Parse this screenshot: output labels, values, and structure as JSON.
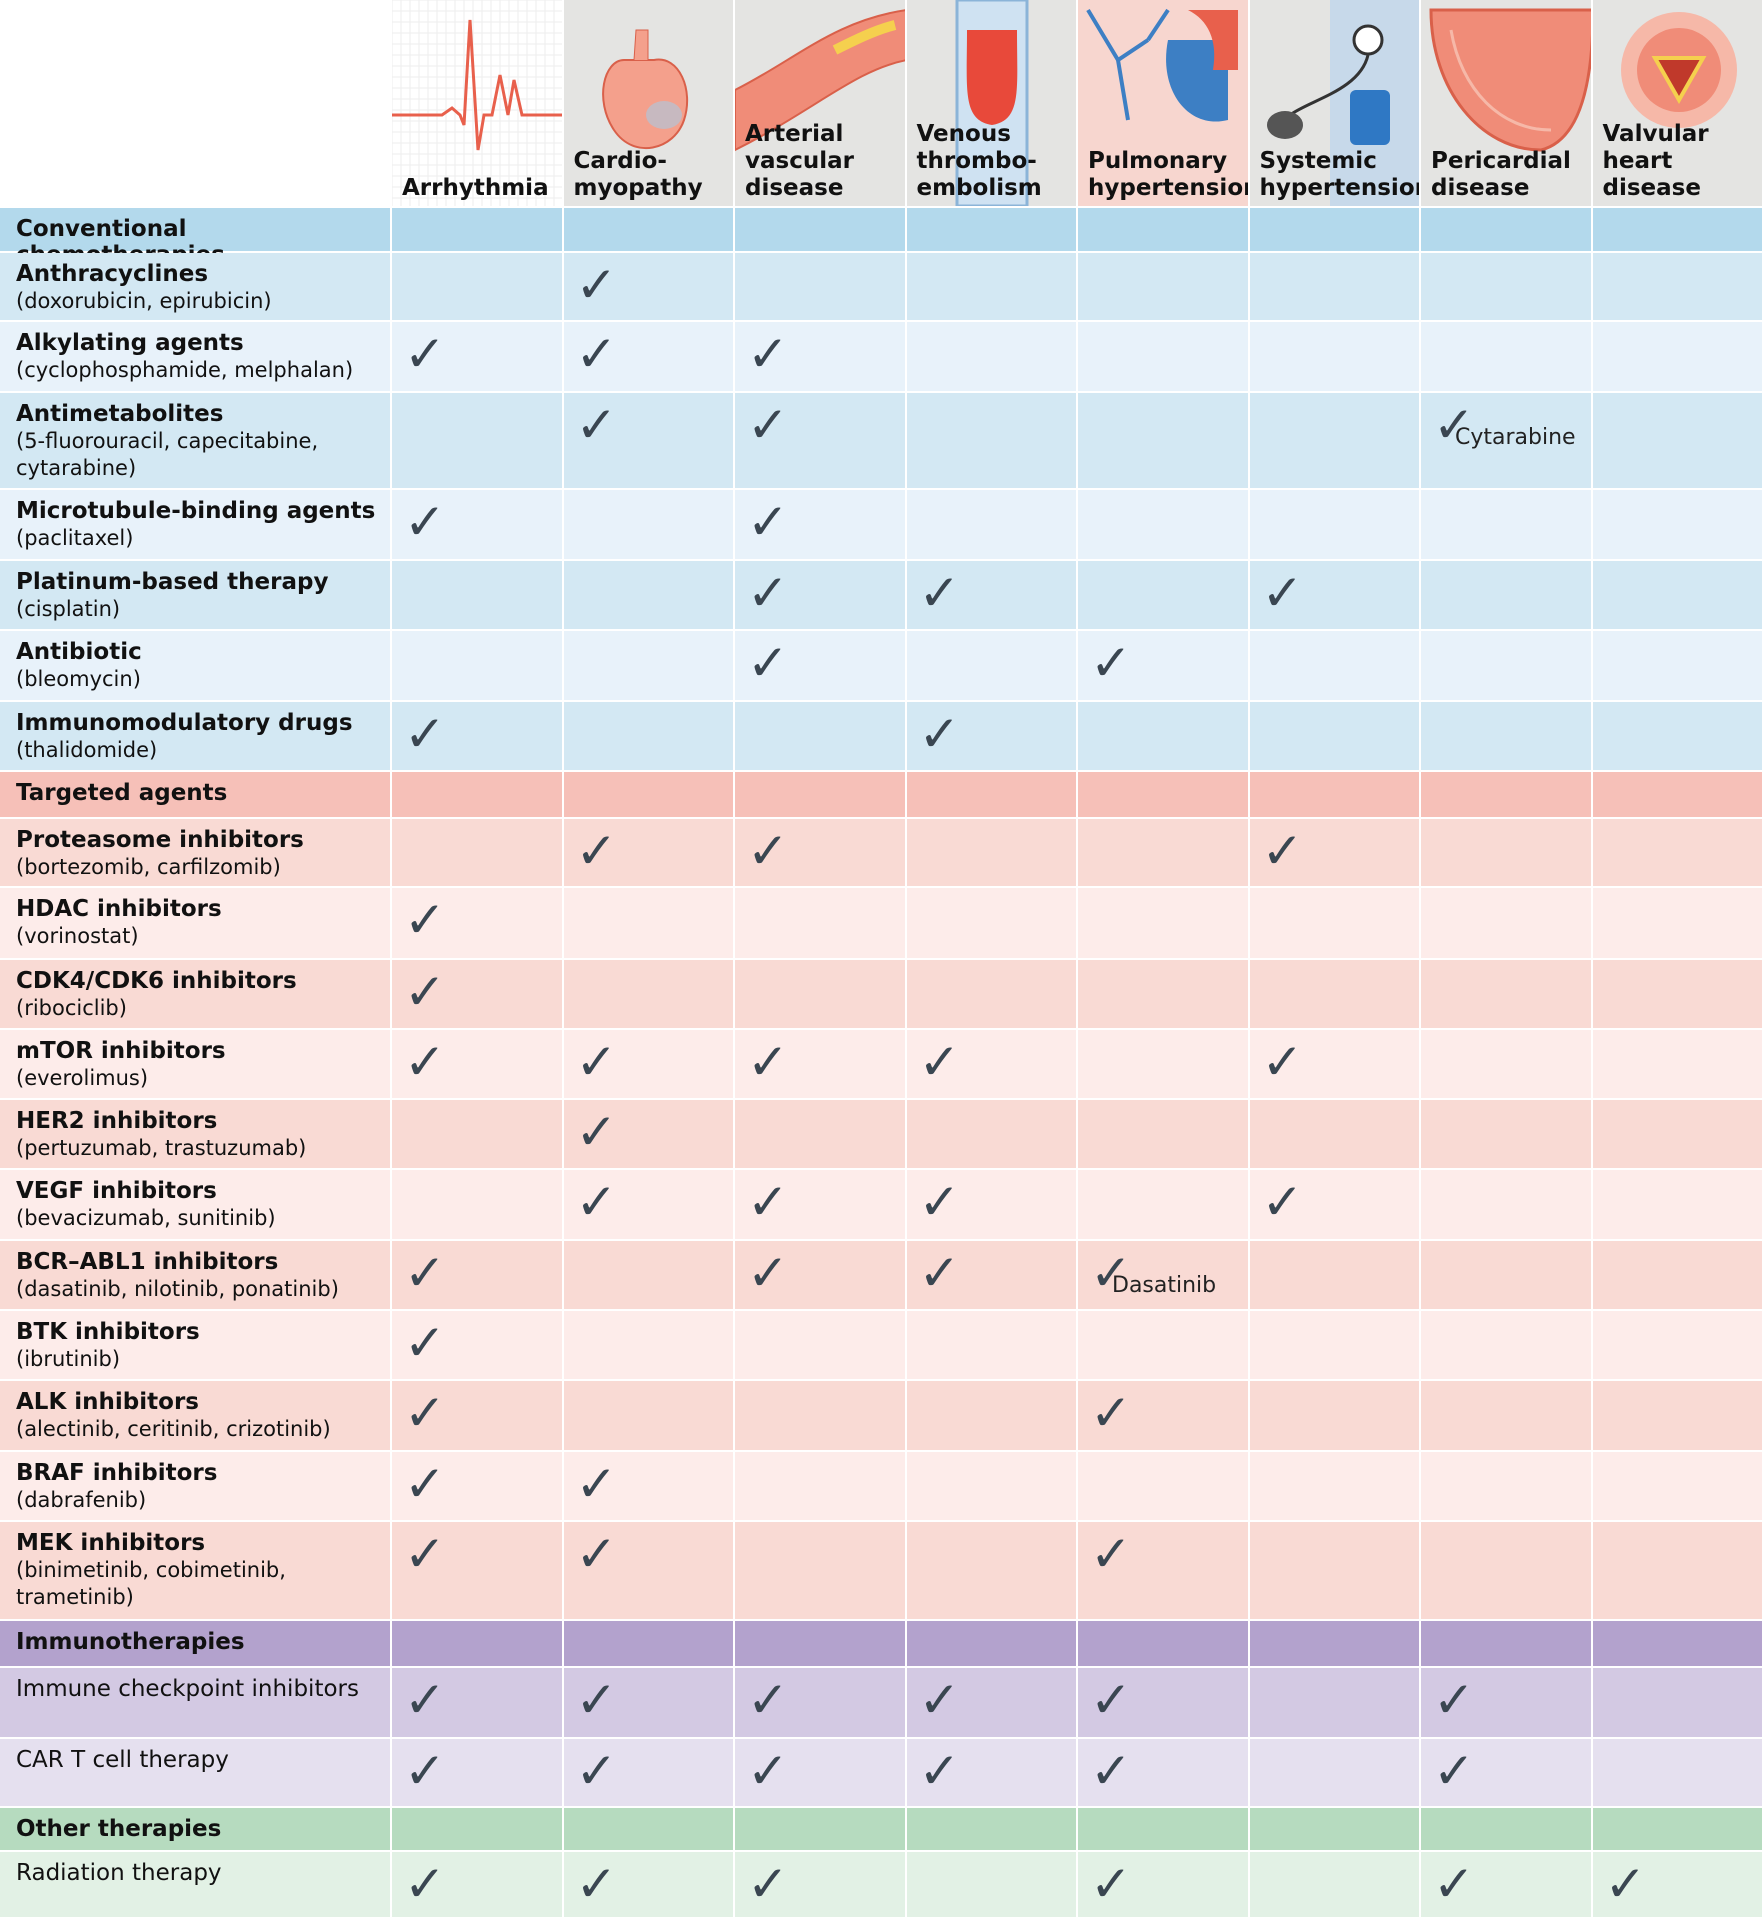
{
  "header": {
    "columns": [
      "Arrhythmia",
      "Cardio-\nmyopathy",
      "Arterial\nvascular\ndisease",
      "Venous\nthrombo-\nembolism",
      "Pulmonary\nhypertension",
      "Systemic\nhypertension",
      "Pericardial\ndisease",
      "Valvular\nheart disease"
    ]
  },
  "sections": [
    {
      "title": "Conventional chemotherapies",
      "rows": [
        {
          "name": "Anthracyclines",
          "agents": "(doxorubicin, epirubicin)",
          "cells": [
            null,
            "✓",
            null,
            null,
            null,
            null,
            null,
            null
          ]
        },
        {
          "name": "Alkylating agents",
          "agents": "(cyclophosphamide, melphalan)",
          "cells": [
            "✓",
            "✓",
            "✓",
            null,
            null,
            null,
            null,
            null
          ]
        },
        {
          "name": "Antimetabolites",
          "agents": "(5-fluorouracil, capecitabine,\ncytarabine)",
          "cells": [
            null,
            "✓",
            "✓",
            null,
            null,
            null,
            {
              "mark": "✓",
              "note": "Cytarabine"
            },
            null
          ]
        },
        {
          "name": "Microtubule-binding agents",
          "agents": "(paclitaxel)",
          "cells": [
            "✓",
            null,
            "✓",
            null,
            null,
            null,
            null,
            null
          ]
        },
        {
          "name": "Platinum-based therapy",
          "agents": "(cisplatin)",
          "cells": [
            null,
            null,
            "✓",
            "✓",
            null,
            "✓",
            null,
            null
          ]
        },
        {
          "name": "Antibiotic",
          "agents": "(bleomycin)",
          "cells": [
            null,
            null,
            "✓",
            null,
            "✓",
            null,
            null,
            null
          ]
        },
        {
          "name": "Immunomodulatory drugs",
          "agents": "(thalidomide)",
          "cells": [
            "✓",
            null,
            null,
            "✓",
            null,
            null,
            null,
            null
          ]
        }
      ]
    },
    {
      "title": "Targeted agents",
      "rows": [
        {
          "name": "Proteasome inhibitors",
          "agents": "(bortezomib, carfilzomib)",
          "cells": [
            null,
            "✓",
            "✓",
            null,
            null,
            "✓",
            null,
            null
          ]
        },
        {
          "name": "HDAC inhibitors",
          "agents": "(vorinostat)",
          "cells": [
            "✓",
            null,
            null,
            null,
            null,
            null,
            null,
            null
          ]
        },
        {
          "name": "CDK4/CDK6 inhibitors",
          "agents": "(ribociclib)",
          "cells": [
            "✓",
            null,
            null,
            null,
            null,
            null,
            null,
            null
          ]
        },
        {
          "name": "mTOR inhibitors",
          "agents": "(everolimus)",
          "cells": [
            "✓",
            "✓",
            "✓",
            "✓",
            null,
            "✓",
            null,
            null
          ]
        },
        {
          "name": "HER2 inhibitors",
          "agents": "(pertuzumab, trastuzumab)",
          "cells": [
            null,
            "✓",
            null,
            null,
            null,
            null,
            null,
            null
          ]
        },
        {
          "name": "VEGF inhibitors",
          "agents": "(bevacizumab, sunitinib)",
          "cells": [
            null,
            "✓",
            "✓",
            "✓",
            null,
            "✓",
            null,
            null
          ]
        },
        {
          "name": "BCR–ABL1 inhibitors",
          "agents": "(dasatinib, nilotinib, ponatinib)",
          "cells": [
            "✓",
            null,
            "✓",
            "✓",
            {
              "mark": "✓",
              "note": "Dasatinib"
            },
            null,
            null,
            null
          ]
        },
        {
          "name": "BTK inhibitors",
          "agents": "(ibrutinib)",
          "cells": [
            "✓",
            null,
            null,
            null,
            null,
            null,
            null,
            null
          ]
        },
        {
          "name": "ALK inhibitors",
          "agents": "(alectinib, ceritinib, crizotinib)",
          "cells": [
            "✓",
            null,
            null,
            null,
            "✓",
            null,
            null,
            null
          ]
        },
        {
          "name": "BRAF inhibitors",
          "agents": "(dabrafenib)",
          "cells": [
            "✓",
            "✓",
            null,
            null,
            null,
            null,
            null,
            null
          ]
        },
        {
          "name": "MEK inhibitors",
          "agents": "(binimetinib, cobimetinib,\ntrametinib)",
          "cells": [
            "✓",
            "✓",
            null,
            null,
            "✓",
            null,
            null,
            null
          ]
        }
      ]
    },
    {
      "title": "Immunotherapies",
      "rows": [
        {
          "name": "Immune checkpoint inhibitors",
          "cells": [
            "✓",
            "✓",
            "✓",
            "✓",
            "✓",
            null,
            "✓",
            null
          ]
        },
        {
          "name": "CAR T cell therapy",
          "cells": [
            "✓",
            "✓",
            "✓",
            "✓",
            "✓",
            null,
            "✓",
            null
          ]
        }
      ]
    },
    {
      "title": "Other therapies",
      "rows": [
        {
          "name": "Radiation therapy",
          "cells": [
            "✓",
            "✓",
            "✓",
            null,
            "✓",
            null,
            "✓",
            "✓"
          ]
        }
      ]
    }
  ]
}
